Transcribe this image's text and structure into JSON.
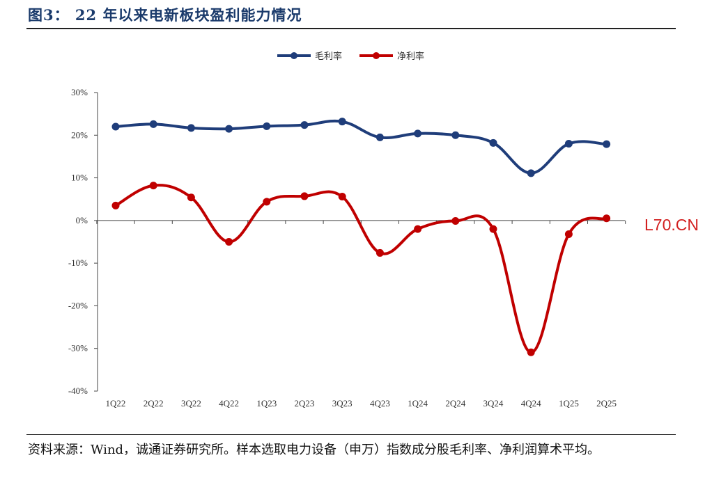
{
  "title": "图3：   22 年以来电新板块盈利能力情况",
  "source_note": "资料来源：Wind，诚通证券研究所。样本选取电力设备（申万）指数成分股毛利率、净利润算术平均。",
  "watermark": "L70.CN",
  "chart_data": {
    "type": "line",
    "categories": [
      "1Q22",
      "2Q22",
      "3Q22",
      "4Q22",
      "1Q23",
      "2Q23",
      "3Q23",
      "4Q23",
      "1Q24",
      "2Q24",
      "3Q24",
      "4Q24",
      "1Q25",
      "2Q25"
    ],
    "y_ticks": [
      "30%",
      "20%",
      "10%",
      "0%",
      "-10%",
      "-20%",
      "-30%",
      "-40%"
    ],
    "ylim": [
      -40,
      30
    ],
    "ytick_values": [
      30,
      20,
      10,
      0,
      -10,
      -20,
      -30,
      -40
    ],
    "grid": false,
    "legend_position": "top-center",
    "series": [
      {
        "name": "毛利率",
        "color": "#1f3d7a",
        "values": [
          22.0,
          22.6,
          21.7,
          21.5,
          22.1,
          22.4,
          23.2,
          19.5,
          20.4,
          20.0,
          18.2,
          11.1,
          18.0,
          17.9
        ]
      },
      {
        "name": "净利率",
        "color": "#c00000",
        "values": [
          3.5,
          8.2,
          5.4,
          -5.0,
          4.4,
          5.7,
          5.6,
          -7.6,
          -2.0,
          -0.1,
          -2.0,
          -30.9,
          -3.2,
          0.5
        ]
      }
    ]
  }
}
